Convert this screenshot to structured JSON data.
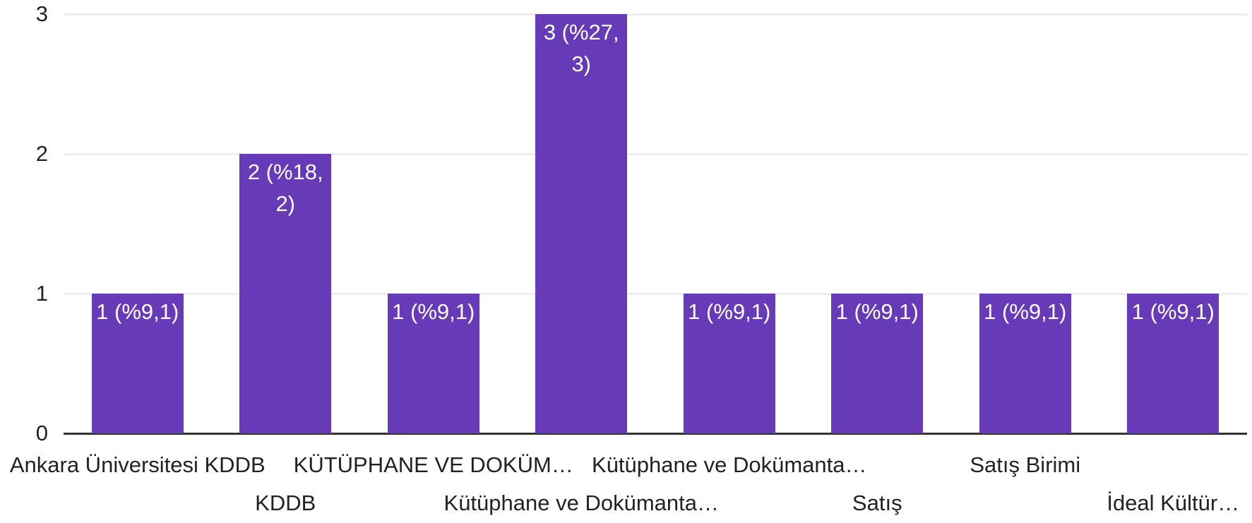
{
  "chart_data": {
    "type": "bar",
    "categories": [
      "Ankara Üniversitesi KDDB",
      "KDDB",
      "KÜTÜPHANE VE DOKÜM…",
      "Kütüphane ve Dokümanta…",
      "Kütüphane ve Dokümanta…",
      "Satış",
      "Satış Birimi",
      "İdeal Kültür…"
    ],
    "values": [
      1,
      2,
      1,
      3,
      1,
      1,
      1,
      1
    ],
    "value_labels": [
      "1 (%9,1)",
      "2 (%18,2)",
      "1 (%9,1)",
      "3 (%27,3)",
      "1 (%9,1)",
      "1 (%9,1)",
      "1 (%9,1)",
      "1 (%9,1)"
    ],
    "color": "#673ab7",
    "ylim": [
      0,
      3
    ],
    "yticks": [
      0,
      1,
      2,
      3
    ],
    "grid": true
  }
}
